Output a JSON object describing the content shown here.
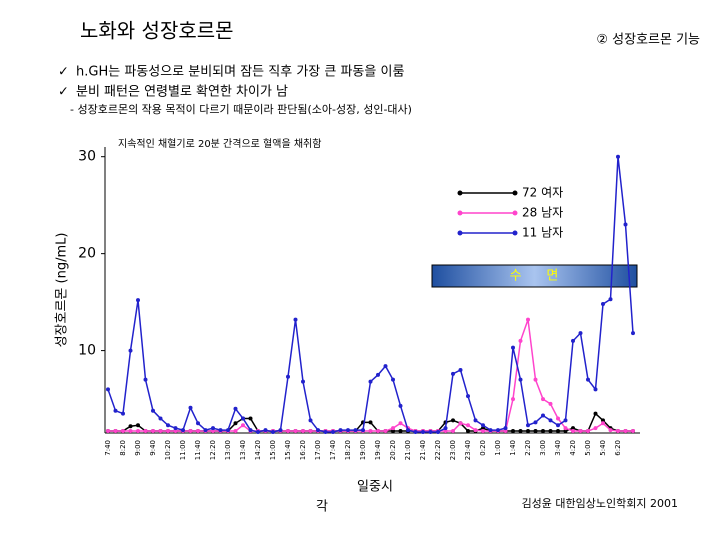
{
  "header": {
    "title": "노화와 성장호르몬",
    "section": "② 성장호르몬 기능",
    "bullets": [
      "h.GH는 파동성으로 분비되며 잠든 직후 가장 큰 파동을 이룸",
      "분비 패턴은 연령별로 확연한 차이가 남"
    ],
    "note": "- 성장호르몬의 작용 목적이 다르기 때문이라 판단됨(소아-성장, 성인-대사)"
  },
  "chart_data": {
    "type": "line",
    "annotation": "지속적인 채혈기로 20분 간격으로 혈액을 채취함",
    "y_label": "성장호르몬 (ng/mL)",
    "x_label": "일중시",
    "x_label_extra": "각",
    "sleep_label": "수      면",
    "source": "김성윤 대한임상노인학회지 2001",
    "categories": [
      "7:40",
      null,
      "8:20",
      null,
      "9:00",
      null,
      "9:40",
      null,
      "10:20",
      null,
      "11:00",
      null,
      "11:40",
      null,
      "12:20",
      null,
      "13:00",
      null,
      "13:40",
      null,
      "14:20",
      null,
      "15:00",
      null,
      "15:40",
      null,
      "16:20",
      null,
      "17:00",
      null,
      "17:40",
      null,
      "18:20",
      null,
      "19:00",
      null,
      "19:40",
      null,
      "20:20",
      null,
      "21:00",
      null,
      "21:40",
      null,
      "22:20",
      null,
      "23:00",
      null,
      "23:40",
      null,
      "0:20",
      null,
      "1:00",
      null,
      "1:40",
      null,
      "2:20",
      null,
      "3:00",
      null,
      "3:40",
      null,
      "4:20",
      null,
      "5:00",
      null,
      "5:40",
      null,
      "6:20",
      null,
      null
    ],
    "ylim": [
      1.5,
      31
    ],
    "yticks": [
      10,
      20,
      30
    ],
    "series": [
      {
        "name": "72 여자",
        "color": "#000000",
        "values": [
          1.7,
          1.7,
          1.7,
          2.2,
          2.3,
          1.7,
          1.7,
          1.7,
          1.7,
          1.7,
          1.7,
          1.7,
          1.7,
          1.7,
          1.7,
          1.7,
          1.7,
          2.5,
          3,
          3,
          1.7,
          1.7,
          1.7,
          1.7,
          1.7,
          1.7,
          1.7,
          1.7,
          1.7,
          1.7,
          1.7,
          1.7,
          1.7,
          1.7,
          2.6,
          2.6,
          1.7,
          1.7,
          1.7,
          1.7,
          1.7,
          1.7,
          1.7,
          1.7,
          1.7,
          2.6,
          2.8,
          2.5,
          1.7,
          1.7,
          2,
          1.7,
          1.7,
          1.7,
          1.7,
          1.7,
          1.7,
          1.7,
          1.7,
          1.7,
          1.7,
          1.7,
          2,
          1.7,
          1.7,
          3.5,
          2.8,
          2,
          1.7,
          1.7,
          1.7
        ]
      },
      {
        "name": "28 남자",
        "color": "#ff44cc",
        "values": [
          1.7,
          1.7,
          1.7,
          1.7,
          1.7,
          1.7,
          1.7,
          1.7,
          1.7,
          1.7,
          1.7,
          1.7,
          1.7,
          1.7,
          1.7,
          1.7,
          1.7,
          1.7,
          2.3,
          1.7,
          1.7,
          1.7,
          1.7,
          1.7,
          1.7,
          1.7,
          1.7,
          1.7,
          1.7,
          1.7,
          1.7,
          1.7,
          1.7,
          1.7,
          1.7,
          1.7,
          1.7,
          1.7,
          2,
          2.5,
          2,
          1.7,
          1.7,
          1.7,
          1.7,
          1.7,
          1.7,
          2.5,
          2.3,
          1.8,
          1.7,
          1.7,
          1.7,
          1.7,
          5,
          11,
          13.2,
          7,
          5,
          4.5,
          3,
          2,
          1.7,
          1.7,
          1.7,
          2,
          2.5,
          1.8,
          1.7,
          1.7,
          1.7
        ]
      },
      {
        "name": "11 남자",
        "color": "#2222cc",
        "values": [
          6,
          3.8,
          3.5,
          10,
          15.2,
          7,
          3.8,
          3,
          2.3,
          2,
          1.8,
          4.1,
          2.5,
          1.8,
          2,
          1.8,
          1.8,
          4,
          3,
          1.8,
          1.6,
          1.8,
          1.6,
          1.8,
          7.3,
          13.2,
          6.8,
          2.8,
          1.8,
          1.6,
          1.6,
          1.8,
          1.8,
          1.8,
          1.8,
          6.8,
          7.5,
          8.4,
          7,
          4.3,
          1.8,
          1.6,
          1.6,
          1.6,
          1.6,
          2,
          7.6,
          8,
          5.3,
          2.8,
          2.3,
          1.8,
          1.8,
          2,
          10.3,
          7,
          2.3,
          2.6,
          3.3,
          2.8,
          2.3,
          2.8,
          11,
          11.8,
          7,
          6,
          14.8,
          15.3,
          30,
          23,
          11.8
        ]
      }
    ]
  }
}
